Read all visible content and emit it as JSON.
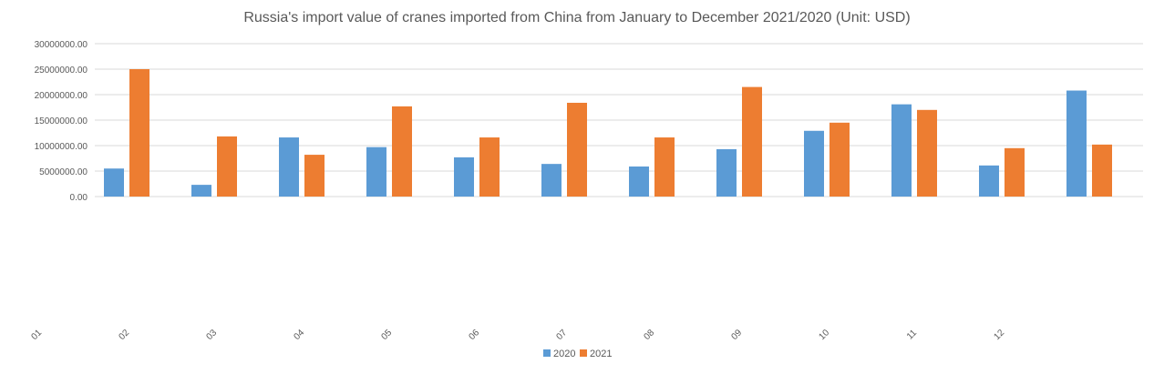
{
  "chart_data": {
    "type": "bar",
    "title": "Russia's import value of cranes imported from China from January to December 2021/2020 (Unit: USD)",
    "xlabel": "",
    "ylabel": "",
    "ylim": [
      0,
      30000000
    ],
    "yticks": [
      "0.00",
      "5000000.00",
      "10000000.00",
      "15000000.00",
      "20000000.00",
      "25000000.00",
      "30000000.00"
    ],
    "categories": [
      "01",
      "02",
      "03",
      "04",
      "05",
      "06",
      "07",
      "08",
      "09",
      "10",
      "11",
      "12"
    ],
    "grid": true,
    "legend_position": "bottom",
    "series": [
      {
        "name": "2020",
        "color": "#5b9bd5",
        "values": [
          5500000,
          2300000,
          11600000,
          9700000,
          7700000,
          6400000,
          5900000,
          9300000,
          12900000,
          18100000,
          6100000,
          20800000
        ]
      },
      {
        "name": "2021",
        "color": "#ed7d31",
        "values": [
          25000000,
          11800000,
          8200000,
          17700000,
          11600000,
          18400000,
          11600000,
          21500000,
          14500000,
          17000000,
          9500000,
          10200000
        ]
      }
    ]
  }
}
